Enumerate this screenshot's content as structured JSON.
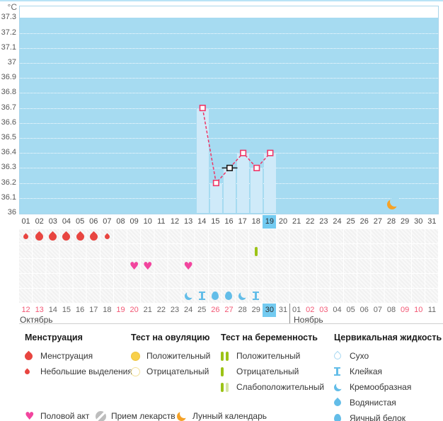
{
  "axis": {
    "unit": "°C",
    "ticks": [
      "37.3",
      "37.2",
      "37.1",
      "37",
      "36.9",
      "36.8",
      "36.7",
      "36.6",
      "36.5",
      "36.4",
      "36.3",
      "36.2",
      "36.1",
      "36"
    ],
    "min": 36,
    "max": 37.3
  },
  "chart_data": {
    "type": "line",
    "title": "",
    "xlabel": "cycle day",
    "ylabel": "°C",
    "ylim": [
      36,
      37.3
    ],
    "x_days": [
      14,
      15,
      16,
      17,
      18,
      19
    ],
    "temperatures": [
      36.7,
      36.2,
      36.3,
      36.4,
      36.3,
      36.4
    ],
    "special_point": {
      "day": 16,
      "temp": 36.3,
      "style": "black-marker"
    },
    "moon_day": 28,
    "line_color": "#ee3566",
    "plot_fill": "#a6dbf1",
    "column_fill": "#cfeaf9"
  },
  "cycle_days": {
    "values": [
      "01",
      "02",
      "03",
      "04",
      "05",
      "06",
      "07",
      "08",
      "09",
      "10",
      "11",
      "12",
      "13",
      "14",
      "15",
      "16",
      "17",
      "18",
      "19",
      "20",
      "21",
      "22",
      "23",
      "24",
      "25",
      "26",
      "27",
      "28",
      "29",
      "30",
      "31"
    ],
    "highlighted": "19"
  },
  "rows": {
    "menstruation": [
      {
        "day": 1,
        "size": "small"
      },
      {
        "day": 2,
        "size": "large"
      },
      {
        "day": 3,
        "size": "large"
      },
      {
        "day": 4,
        "size": "large"
      },
      {
        "day": 5,
        "size": "large"
      },
      {
        "day": 6,
        "size": "large"
      },
      {
        "day": 7,
        "size": "small"
      }
    ],
    "pregnancy_tests": [
      {
        "day": 18,
        "result": "negative"
      }
    ],
    "intercourse": [
      9,
      10,
      13
    ],
    "medication": [],
    "cervical": [
      {
        "day": 13,
        "type": "crescent"
      },
      {
        "day": 14,
        "type": "ibeam"
      },
      {
        "day": 15,
        "type": "egg"
      },
      {
        "day": 16,
        "type": "egg"
      },
      {
        "day": 17,
        "type": "crescent"
      },
      {
        "day": 18,
        "type": "ibeam"
      }
    ]
  },
  "calendar": {
    "october": {
      "label": "Октябрь",
      "dates": [
        {
          "t": "12",
          "w": true
        },
        {
          "t": "13",
          "w": true
        },
        {
          "t": "14",
          "w": false
        },
        {
          "t": "15",
          "w": false
        },
        {
          "t": "16",
          "w": false
        },
        {
          "t": "17",
          "w": false
        },
        {
          "t": "18",
          "w": false
        },
        {
          "t": "19",
          "w": true
        },
        {
          "t": "20",
          "w": true
        },
        {
          "t": "21",
          "w": false
        },
        {
          "t": "22",
          "w": false
        },
        {
          "t": "23",
          "w": false
        },
        {
          "t": "24",
          "w": false
        },
        {
          "t": "25",
          "w": false
        },
        {
          "t": "26",
          "w": true
        },
        {
          "t": "27",
          "w": true
        },
        {
          "t": "28",
          "w": false
        },
        {
          "t": "29",
          "w": false
        },
        {
          "t": "30",
          "w": false
        },
        {
          "t": "31",
          "w": false
        }
      ],
      "highlighted": "30"
    },
    "november": {
      "label": "Ноябрь",
      "dates": [
        {
          "t": "01",
          "w": false
        },
        {
          "t": "02",
          "w": true
        },
        {
          "t": "03",
          "w": true
        },
        {
          "t": "04",
          "w": false
        },
        {
          "t": "05",
          "w": false
        },
        {
          "t": "06",
          "w": false
        },
        {
          "t": "07",
          "w": false
        },
        {
          "t": "08",
          "w": false
        },
        {
          "t": "09",
          "w": true
        },
        {
          "t": "10",
          "w": true
        },
        {
          "t": "11",
          "w": false
        }
      ]
    }
  },
  "legend": {
    "menstruation": {
      "title": "Менструация",
      "items": [
        {
          "icon": "drop-large",
          "label": "Менструация"
        },
        {
          "icon": "drop-small",
          "label": "Небольшие выделения"
        }
      ]
    },
    "ovulation": {
      "title": "Тест на овуляцию",
      "items": [
        {
          "icon": "circle-filled",
          "label": "Положительный"
        },
        {
          "icon": "circle-outline",
          "label": "Отрицательный"
        }
      ]
    },
    "pregnancy": {
      "title": "Тест на беременность",
      "items": [
        {
          "icon": "bars-two",
          "label": "Положительный"
        },
        {
          "icon": "bar-one",
          "label": "Отрицательный"
        },
        {
          "icon": "bars-weak",
          "label": "Слабоположительный"
        }
      ]
    },
    "cervical": {
      "title": "Цервикальная жидкость",
      "items": [
        {
          "icon": "drop-outline",
          "label": "Сухо"
        },
        {
          "icon": "ibeam",
          "label": "Клейкая"
        },
        {
          "icon": "crescent",
          "label": "Кремообразная"
        },
        {
          "icon": "drop-filled",
          "label": "Водянистая"
        },
        {
          "icon": "egg",
          "label": "Яичный белок"
        }
      ]
    },
    "extra": [
      {
        "icon": "heart",
        "label": "Половой акт"
      },
      {
        "icon": "pill",
        "label": "Прием лекарств"
      },
      {
        "icon": "moon",
        "label": "Лунный календарь"
      }
    ]
  }
}
